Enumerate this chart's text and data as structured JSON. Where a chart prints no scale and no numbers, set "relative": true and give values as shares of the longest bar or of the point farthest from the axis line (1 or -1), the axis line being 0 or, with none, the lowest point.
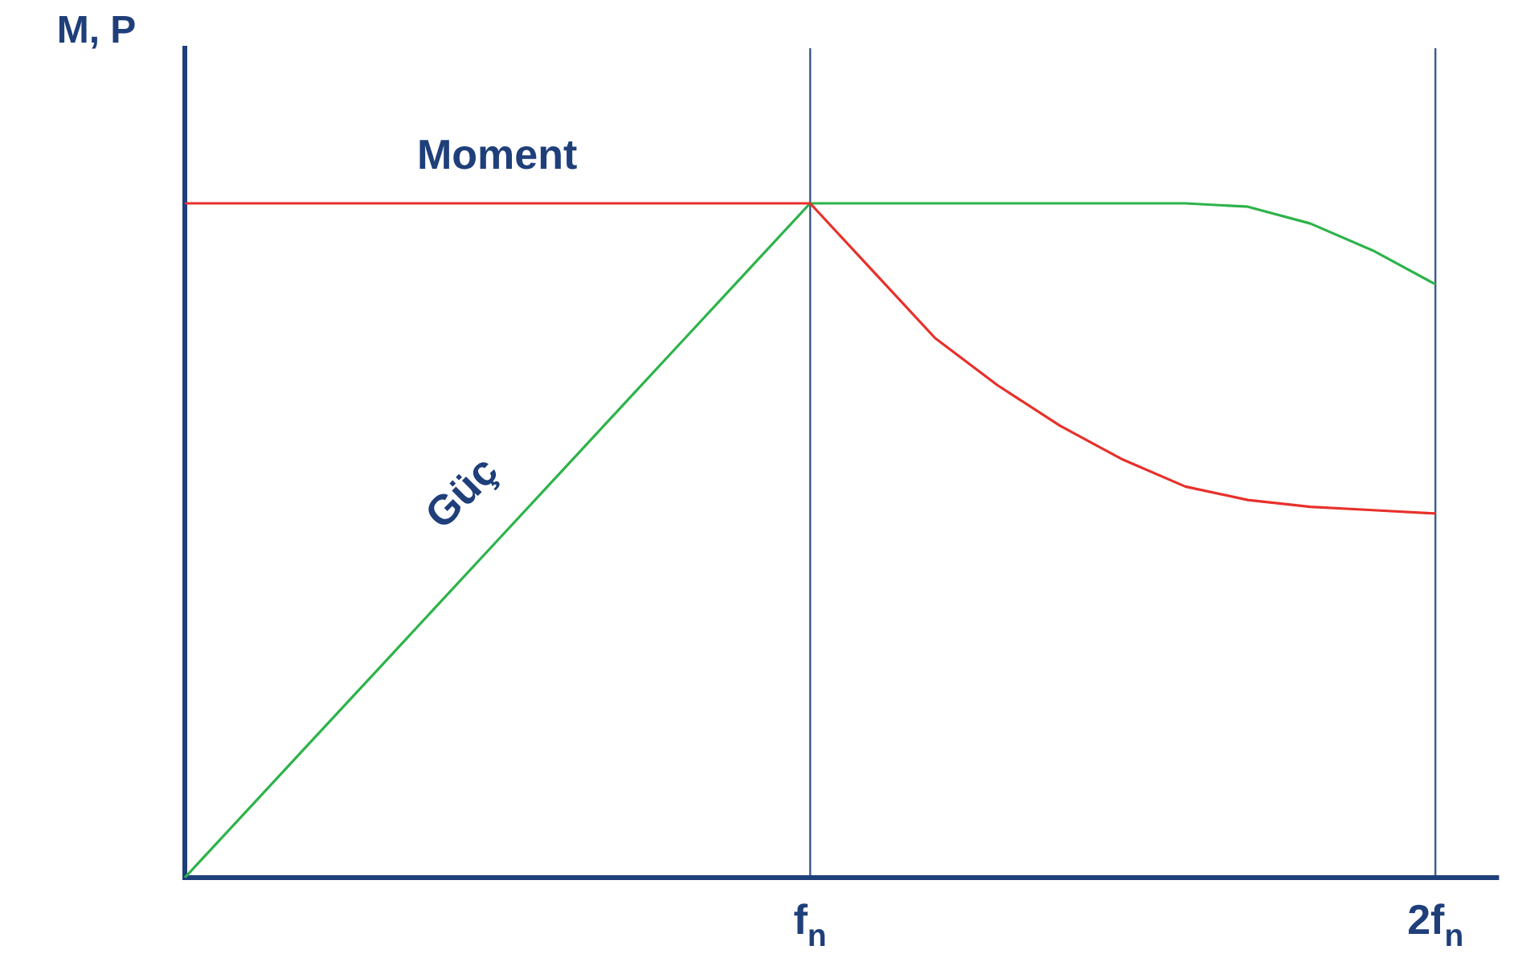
{
  "chart_data": {
    "type": "line",
    "relative": true,
    "ylabel": "M, P",
    "categories": [
      null,
      null,
      null,
      null,
      null,
      null,
      null,
      null,
      null,
      null,
      "f$_{n}$",
      null,
      null,
      null,
      null,
      null,
      null,
      null,
      null,
      null,
      "2f$_{n}$",
      null
    ],
    "grid": "x",
    "legend": false,
    "marker": "none",
    "line_style": "solid",
    "tick_labels": "x",
    "series": [
      {
        "name": "Moment",
        "color": "#e8302a",
        "values": [
          1,
          1,
          1,
          1,
          1,
          1,
          1,
          1,
          1,
          1,
          1,
          0.9,
          0.8,
          0.73,
          0.67,
          0.62,
          0.58,
          0.56,
          0.55,
          0.545,
          0.54,
          null
        ]
      },
      {
        "name": "Güç",
        "color": "#2db34a",
        "values": [
          0,
          0.1,
          0.2,
          0.3,
          0.4,
          0.5,
          0.6,
          0.7,
          0.8,
          0.9,
          1,
          1,
          1,
          1,
          1,
          1,
          1,
          0.995,
          0.97,
          0.93,
          0.88,
          null
        ]
      }
    ]
  }
}
